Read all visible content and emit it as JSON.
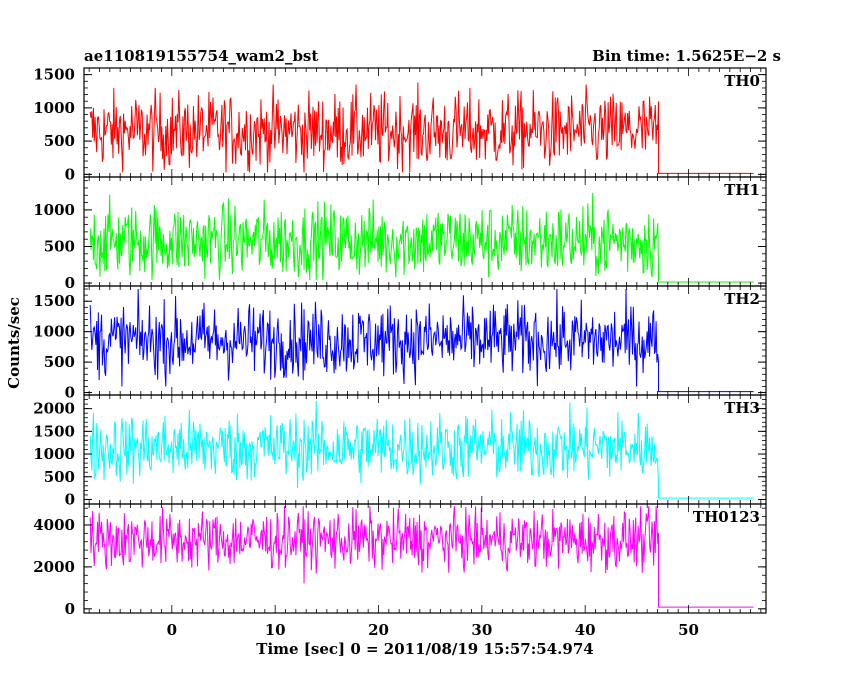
{
  "header": {
    "title": "ae110819155754_wam2_bst",
    "bin_time": "Bin time: 1.5625E−2 s"
  },
  "axes": {
    "xlabel": "Time [sec] 0 = 2011/08/19 15:57:54.974",
    "ylabel": "Counts/sec"
  },
  "chart_data": [
    {
      "type": "line",
      "name": "TH0",
      "color": "#ff0000",
      "xlim": [
        -8.5,
        57.5
      ],
      "ylim": [
        -40,
        1600
      ],
      "yticks": [
        0,
        500,
        1000,
        1500
      ],
      "xticks": [
        0,
        10,
        20,
        30,
        40,
        50
      ],
      "burst": {
        "x_start": -7.9,
        "x_end": 47.1,
        "mean": 650,
        "min": 30,
        "max": 1550
      },
      "background": {
        "x_start": 47.1,
        "x_end": 56.3,
        "level": 15
      }
    },
    {
      "type": "line",
      "name": "TH1",
      "color": "#00ff00",
      "xlim": [
        -8.5,
        57.5
      ],
      "ylim": [
        -40,
        1450
      ],
      "yticks": [
        0,
        500,
        1000
      ],
      "xticks": [
        0,
        10,
        20,
        30,
        40,
        50
      ],
      "burst": {
        "x_start": -7.9,
        "x_end": 47.1,
        "mean": 580,
        "min": 40,
        "max": 1380
      },
      "background": {
        "x_start": 47.1,
        "x_end": 56.3,
        "level": 15
      }
    },
    {
      "type": "line",
      "name": "TH2",
      "color": "#0000ff",
      "xlim": [
        -8.5,
        57.5
      ],
      "ylim": [
        -40,
        1750
      ],
      "yticks": [
        0,
        500,
        1000,
        1500
      ],
      "xticks": [
        0,
        10,
        20,
        30,
        40,
        50
      ],
      "burst": {
        "x_start": -7.9,
        "x_end": 47.1,
        "mean": 860,
        "min": 100,
        "max": 1700
      },
      "background": {
        "x_start": 47.1,
        "x_end": 56.3,
        "level": 15
      }
    },
    {
      "type": "line",
      "name": "TH3",
      "color": "#00ffff",
      "xlim": [
        -8.5,
        57.5
      ],
      "ylim": [
        -100,
        2300
      ],
      "yticks": [
        0,
        500,
        1000,
        1500,
        2000
      ],
      "xticks": [
        0,
        10,
        20,
        30,
        40,
        50
      ],
      "burst": {
        "x_start": -7.9,
        "x_end": 47.1,
        "mean": 1150,
        "min": 250,
        "max": 2250
      },
      "background": {
        "x_start": 47.1,
        "x_end": 56.3,
        "level": 30
      }
    },
    {
      "type": "line",
      "name": "TH0123",
      "color": "#ff00ff",
      "xlim": [
        -8.5,
        57.5
      ],
      "ylim": [
        -200,
        5000
      ],
      "yticks": [
        0,
        2000,
        4000
      ],
      "xticks": [
        0,
        10,
        20,
        30,
        40,
        50
      ],
      "burst": {
        "x_start": -7.9,
        "x_end": 47.1,
        "mean": 3300,
        "min": 1200,
        "max": 4900
      },
      "background": {
        "x_start": 47.1,
        "x_end": 56.3,
        "level": 80
      }
    }
  ]
}
